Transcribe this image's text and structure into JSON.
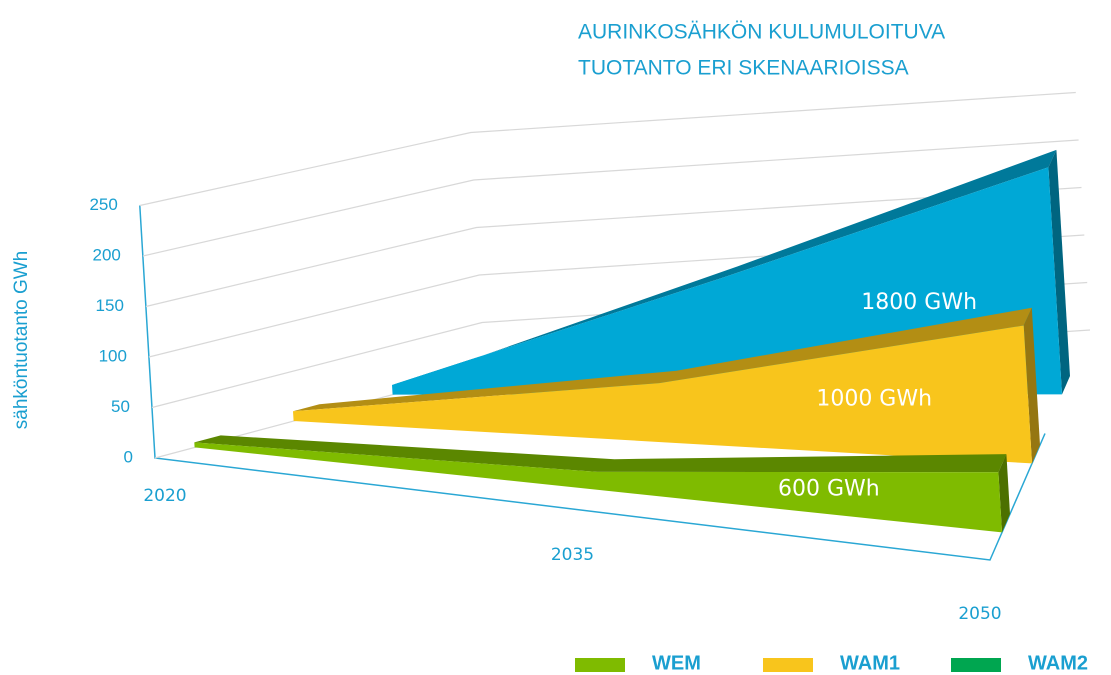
{
  "chart_data": {
    "type": "area3d",
    "title": [
      "AURINKOSÄHKÖN KULUMULOITUVA",
      "TUOTANTO ERI SKENAARIOISSA"
    ],
    "y_label": "sähköntuotanto GWh",
    "categories": [
      "2020",
      "2035",
      "2050"
    ],
    "ylim": [
      0,
      250
    ],
    "yticks": [
      0,
      50,
      100,
      150,
      200,
      250
    ],
    "grid": true,
    "series": [
      {
        "name": "WEM",
        "color": "#7fbb00",
        "legend_color": "#7fbb00",
        "values": [
          5,
          18,
          60
        ],
        "annotation": "600 GWh"
      },
      {
        "name": "WAM1",
        "color": "#f8c51c",
        "legend_color": "#f8c51c",
        "values": [
          10,
          60,
          140
        ],
        "annotation": "1000 GWh"
      },
      {
        "name": "WAM2",
        "color": "#00a8d6",
        "legend_color": "#00a650",
        "values": [
          10,
          120,
          235
        ],
        "annotation": "1800 GWh"
      }
    ]
  }
}
